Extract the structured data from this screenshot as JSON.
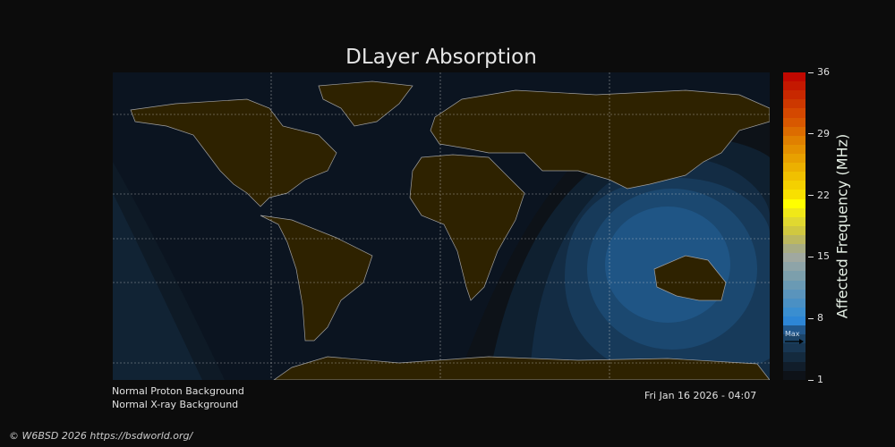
{
  "chart_data": {
    "type": "heatmap",
    "title": "DLayer Absorption",
    "colorbar": {
      "label": "Affected Frequency (MHz)",
      "range": [
        1,
        36
      ],
      "ticks": [
        "1",
        "8",
        "15",
        "22",
        "29",
        "36"
      ],
      "max_marker": "Max",
      "max_value": 5
    },
    "colors": {
      "land": "#2e2200",
      "ocean": "#0b1420",
      "coastline": "#a0a0a0",
      "absorption_peak": "#1f5585"
    }
  },
  "status": {
    "proton": "Normal Proton Background",
    "xray": "Normal X-ray Background",
    "timestamp": "Fri Jan 16 2026 - 04:07"
  },
  "footer": {
    "copyright": "© W6BSD 2026 https://bsdworld.org/"
  }
}
